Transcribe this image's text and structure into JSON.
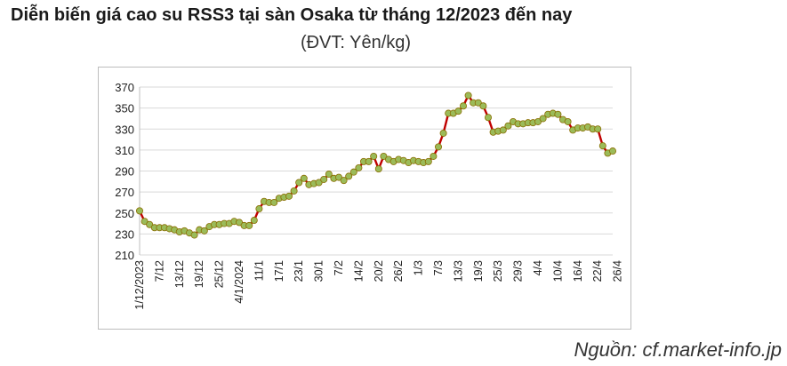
{
  "title": "Diễn biến giá cao su RSS3 tại sàn Osaka từ tháng 12/2023 đến nay",
  "subtitle": "(ĐVT: Yên/kg)",
  "source": "Nguồn: cf.market-info.jp",
  "chart_data": {
    "type": "line",
    "xlabel": "",
    "ylabel": "",
    "ylim": [
      210,
      370
    ],
    "yticks": [
      210,
      230,
      250,
      270,
      290,
      310,
      330,
      350,
      370
    ],
    "grid": true,
    "legend": "none",
    "line_color": "#c00000",
    "marker_color": "#9bbb59",
    "x_tick_labels": [
      "1/12/2023",
      "7/12",
      "13/12",
      "19/12",
      "25/12",
      "4/1/2024",
      "11/1",
      "17/1",
      "23/1",
      "30/1",
      "7/2",
      "14/2",
      "20/2",
      "26/2",
      "1/3",
      "7/3",
      "13/3",
      "19/3",
      "25/3",
      "29/3",
      "4/4",
      "10/4",
      "16/4",
      "22/4",
      "26/4"
    ],
    "x_tick_positions": [
      0,
      4,
      8,
      12,
      16,
      20,
      24,
      28,
      32,
      36,
      40,
      44,
      48,
      52,
      56,
      60,
      64,
      68,
      72,
      76,
      80,
      84,
      88,
      92,
      96
    ],
    "values": [
      252,
      242,
      239,
      236,
      236,
      236,
      235,
      234,
      232,
      233,
      231,
      229,
      234,
      233,
      237,
      239,
      239,
      240,
      240,
      242,
      241,
      238,
      238,
      243,
      254,
      261,
      260,
      260,
      264,
      265,
      266,
      271,
      279,
      283,
      277,
      278,
      279,
      282,
      287,
      283,
      284,
      281,
      285,
      289,
      293,
      299,
      299,
      304,
      292,
      304,
      301,
      299,
      301,
      300,
      298,
      300,
      299,
      298,
      299,
      304,
      313,
      326,
      345,
      345,
      347,
      352,
      362,
      355,
      355,
      352,
      341,
      327,
      328,
      329,
      333,
      337,
      335,
      335,
      336,
      336,
      337,
      340,
      344,
      345,
      344,
      339,
      337,
      329,
      331,
      331,
      332,
      330,
      330,
      314,
      307,
      309
    ]
  }
}
